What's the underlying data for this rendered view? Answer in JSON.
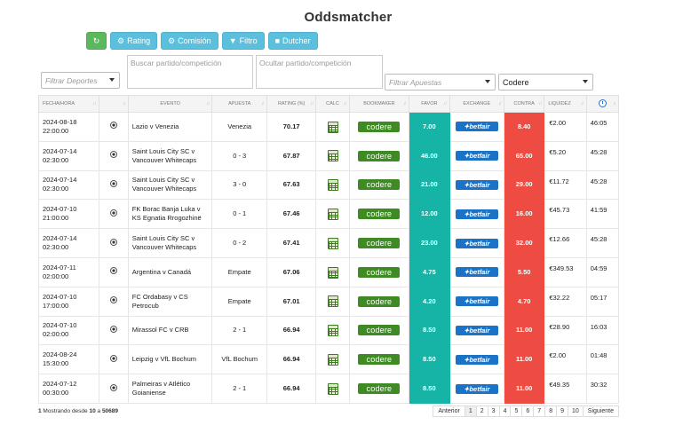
{
  "page": {
    "title": "Oddsmatcher"
  },
  "toolbar": {
    "refresh_icon": "refresh-icon",
    "rating_label": "Rating",
    "comision_label": "Comisión",
    "filtro_label": "Filtro",
    "dutcher_label": "Dutcher",
    "colors": {
      "green": "#5cb85c",
      "blue": "#5bc0de"
    }
  },
  "filters": {
    "deportes_placeholder": "Filtrar Deportes",
    "buscar_placeholder": "Buscar partido/competición",
    "ocultar_placeholder": "Ocultar partido/competición",
    "apuestas_placeholder": "Filtrar Apuestas",
    "bookmaker_value": "Codere"
  },
  "table": {
    "headers": [
      "Fecha/Hora",
      "",
      "Evento",
      "Apuesta",
      "Rating (%)",
      "Calc",
      "Bookmaker",
      "Favor",
      "Exchange",
      "Contra",
      "Liquidez",
      "clock-icon"
    ],
    "rows": [
      {
        "date": "2024-08-18",
        "time": "22:00:00",
        "evento": "Lazio v Venezia",
        "apuesta": "Venezia",
        "rating": "70.17",
        "bookmaker": "codere",
        "favor": "7.00",
        "exchange": "betfair",
        "contra": "8.40",
        "liquidez": "€2.00",
        "tiempo": "46:05"
      },
      {
        "date": "2024-07-14",
        "time": "02:30:00",
        "evento": "Saint Louis City SC v Vancouver Whitecaps",
        "apuesta": "0 - 3",
        "rating": "67.87",
        "bookmaker": "codere",
        "favor": "46.00",
        "exchange": "betfair",
        "contra": "65.00",
        "liquidez": "€5.20",
        "tiempo": "45:28"
      },
      {
        "date": "2024-07-14",
        "time": "02:30:00",
        "evento": "Saint Louis City SC v Vancouver Whitecaps",
        "apuesta": "3 - 0",
        "rating": "67.63",
        "bookmaker": "codere",
        "favor": "21.00",
        "exchange": "betfair",
        "contra": "29.00",
        "liquidez": "€11.72",
        "tiempo": "45:28"
      },
      {
        "date": "2024-07-10",
        "time": "21:00:00",
        "evento": "FK Borac Banja Luka v KS Egnatia Rrogozhinë",
        "apuesta": "0 - 1",
        "rating": "67.46",
        "bookmaker": "codere",
        "favor": "12.00",
        "exchange": "betfair",
        "contra": "16.00",
        "liquidez": "€45.73",
        "tiempo": "41:59"
      },
      {
        "date": "2024-07-14",
        "time": "02:30:00",
        "evento": "Saint Louis City SC v Vancouver Whitecaps",
        "apuesta": "0 - 2",
        "rating": "67.41",
        "bookmaker": "codere",
        "favor": "23.00",
        "exchange": "betfair",
        "contra": "32.00",
        "liquidez": "€12.66",
        "tiempo": "45:28"
      },
      {
        "date": "2024-07-11",
        "time": "02:00:00",
        "evento": "Argentina v Canadá",
        "apuesta": "Empate",
        "rating": "67.06",
        "bookmaker": "codere",
        "favor": "4.75",
        "exchange": "betfair",
        "contra": "5.50",
        "liquidez": "€349.53",
        "tiempo": "04:59"
      },
      {
        "date": "2024-07-10",
        "time": "17:00:00",
        "evento": "FC Ordabasy v CS Petrocub",
        "apuesta": "Empate",
        "rating": "67.01",
        "bookmaker": "codere",
        "favor": "4.20",
        "exchange": "betfair",
        "contra": "4.70",
        "liquidez": "€32.22",
        "tiempo": "05:17"
      },
      {
        "date": "2024-07-10",
        "time": "02:00:00",
        "evento": "Mirassol FC v CRB",
        "apuesta": "2 - 1",
        "rating": "66.94",
        "bookmaker": "codere",
        "favor": "8.50",
        "exchange": "betfair",
        "contra": "11.00",
        "liquidez": "€28.90",
        "tiempo": "16:03"
      },
      {
        "date": "2024-08-24",
        "time": "15:30:00",
        "evento": "Leipzig v VfL Bochum",
        "apuesta": "VfL Bochum",
        "rating": "66.94",
        "bookmaker": "codere",
        "favor": "8.50",
        "exchange": "betfair",
        "contra": "11.00",
        "liquidez": "€2.00",
        "tiempo": "01:48"
      },
      {
        "date": "2024-07-12",
        "time": "00:30:00",
        "evento": "Palmeiras v Atlético Goianiense",
        "apuesta": "2 - 1",
        "rating": "66.94",
        "bookmaker": "codere",
        "favor": "8.50",
        "exchange": "betfair",
        "contra": "11.00",
        "liquidez": "€49.35",
        "tiempo": "30:32"
      }
    ],
    "colors": {
      "favor": "#15b4a6",
      "contra": "#ee4b42",
      "bookmaker": "#3e8b24",
      "exchange": "#1b73c8"
    }
  },
  "footer": {
    "info_start": "1",
    "info_mid": " Mostrando desde ",
    "info_to": "10",
    "info_a": " a ",
    "info_total": "50689",
    "pager": {
      "prev": "Anterior",
      "pages": [
        "1",
        "2",
        "3",
        "4",
        "5",
        "6",
        "7",
        "8",
        "9",
        "10"
      ],
      "next": "Siguiente",
      "active": "1"
    }
  }
}
